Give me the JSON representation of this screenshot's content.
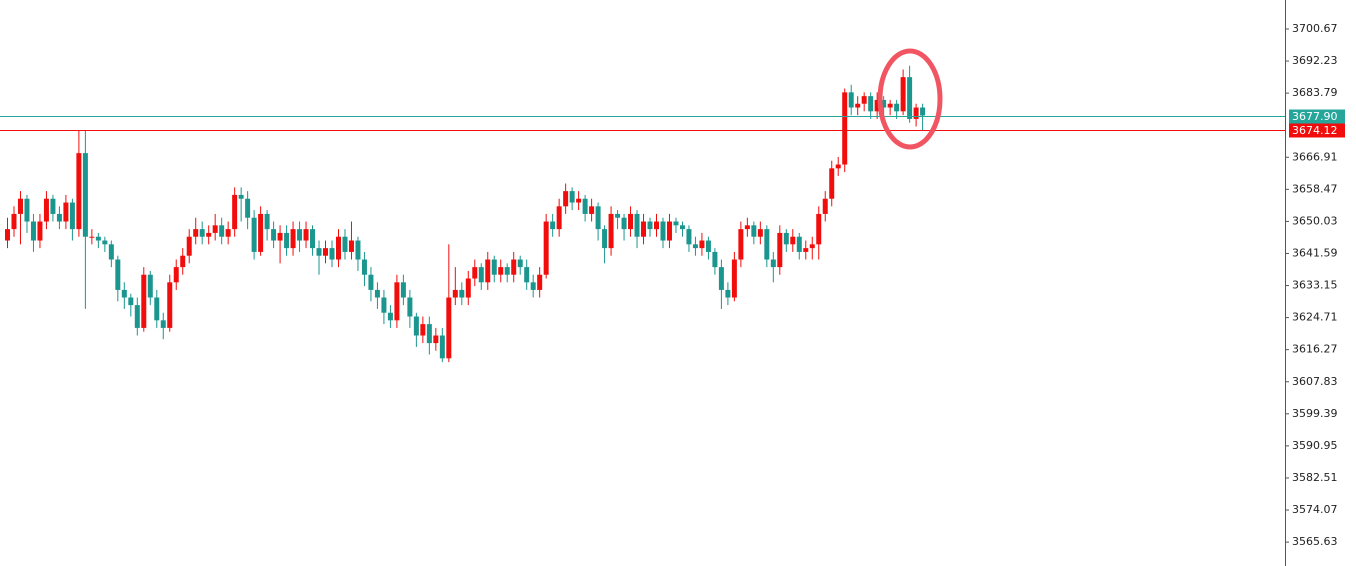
{
  "chart_data": {
    "type": "candlestick",
    "up_color": "#f20d0d",
    "down_color": "#1a968f",
    "ylim": [
      3559.34,
      3708.3
    ],
    "yticks": [
      3700.67,
      3692.23,
      3683.79,
      3666.91,
      3658.47,
      3650.03,
      3641.59,
      3633.15,
      3624.71,
      3616.27,
      {
        "value": 3607.83,
        "label": "3607.83"
      },
      3599.39,
      3590.95,
      3582.51,
      3574.07,
      3565.63
    ],
    "price_lines": [
      {
        "value": 3677.9,
        "label": "3677.90",
        "color": "#26a69a"
      },
      {
        "value": 3674.12,
        "label": "3674.12",
        "color": "#f20d0d"
      }
    ],
    "ohlc": [
      [
        3645,
        3651,
        3643,
        3648
      ],
      [
        3648,
        3654,
        3646,
        3652
      ],
      [
        3652,
        3658,
        3644,
        3656
      ],
      [
        3656,
        3657,
        3647,
        3650
      ],
      [
        3650,
        3652,
        3642,
        3645
      ],
      [
        3645,
        3652,
        3643,
        3650
      ],
      [
        3650,
        3658,
        3648,
        3656
      ],
      [
        3656,
        3657,
        3650,
        3652
      ],
      [
        3652,
        3654,
        3648,
        3650
      ],
      [
        3650,
        3657,
        3648,
        3655
      ],
      [
        3655,
        3656,
        3645,
        3648
      ],
      [
        3648,
        3674,
        3646,
        3668
      ],
      [
        3668,
        3674,
        3627,
        3646
      ],
      [
        3646,
        3648,
        3644,
        3646
      ],
      [
        3646,
        3647,
        3643,
        3645
      ],
      [
        3645,
        3646,
        3642,
        3644
      ],
      [
        3644,
        3645,
        3638,
        3640
      ],
      [
        3640,
        3641,
        3629,
        3632
      ],
      [
        3632,
        3634,
        3627,
        3630
      ],
      [
        3630,
        3631,
        3625,
        3628
      ],
      [
        3628,
        3630,
        3620,
        3622
      ],
      [
        3622,
        3638,
        3621,
        3636
      ],
      [
        3636,
        3637,
        3628,
        3630
      ],
      [
        3630,
        3632,
        3622,
        3624
      ],
      [
        3624,
        3626,
        3619,
        3622
      ],
      [
        3622,
        3636,
        3621,
        3634
      ],
      [
        3634,
        3640,
        3632,
        3638
      ],
      [
        3638,
        3643,
        3636,
        3641
      ],
      [
        3641,
        3648,
        3639,
        3646
      ],
      [
        3646,
        3651,
        3644,
        3648
      ],
      [
        3648,
        3650,
        3644,
        3646
      ],
      [
        3646,
        3649,
        3644,
        3647
      ],
      [
        3647,
        3652,
        3645,
        3649
      ],
      [
        3649,
        3651,
        3644,
        3646
      ],
      [
        3646,
        3650,
        3644,
        3648
      ],
      [
        3648,
        3659,
        3646,
        3657
      ],
      [
        3657,
        3659,
        3650,
        3656
      ],
      [
        3656,
        3658,
        3648,
        3651
      ],
      [
        3651,
        3653,
        3640,
        3642
      ],
      [
        3642,
        3654,
        3641,
        3652
      ],
      [
        3652,
        3653,
        3645,
        3648
      ],
      [
        3648,
        3650,
        3643,
        3645
      ],
      [
        3645,
        3649,
        3639,
        3647
      ],
      [
        3647,
        3649,
        3641,
        3643
      ],
      [
        3643,
        3650,
        3641,
        3648
      ],
      [
        3648,
        3650,
        3642,
        3645
      ],
      [
        3645,
        3650,
        3643,
        3648
      ],
      [
        3648,
        3649,
        3641,
        3643
      ],
      [
        3643,
        3645,
        3636,
        3641
      ],
      [
        3641,
        3645,
        3639,
        3643
      ],
      [
        3643,
        3645,
        3638,
        3640
      ],
      [
        3640,
        3648,
        3638,
        3646
      ],
      [
        3646,
        3648,
        3640,
        3642
      ],
      [
        3642,
        3650,
        3640,
        3645
      ],
      [
        3645,
        3646,
        3637,
        3640
      ],
      [
        3640,
        3642,
        3633,
        3636
      ],
      [
        3636,
        3638,
        3629,
        3632
      ],
      [
        3632,
        3634,
        3627,
        3630
      ],
      [
        3630,
        3632,
        3623,
        3626
      ],
      [
        3626,
        3628,
        3622,
        3624
      ],
      [
        3624,
        3636,
        3622,
        3634
      ],
      [
        3634,
        3636,
        3628,
        3630
      ],
      [
        3630,
        3632,
        3622,
        3625
      ],
      [
        3625,
        3626,
        3617,
        3620
      ],
      [
        3620,
        3625,
        3618,
        3623
      ],
      [
        3623,
        3625,
        3615,
        3618
      ],
      [
        3618,
        3622,
        3616,
        3620
      ],
      [
        3620,
        3622,
        3613,
        3614
      ],
      [
        3614,
        3644,
        3613,
        3630
      ],
      [
        3630,
        3638,
        3628,
        3632
      ],
      [
        3632,
        3634,
        3628,
        3630
      ],
      [
        3630,
        3637,
        3628,
        3635
      ],
      [
        3635,
        3640,
        3633,
        3638
      ],
      [
        3638,
        3639,
        3632,
        3634
      ],
      [
        3634,
        3642,
        3632,
        3640
      ],
      [
        3640,
        3641,
        3634,
        3636
      ],
      [
        3636,
        3640,
        3634,
        3638
      ],
      [
        3638,
        3639,
        3634,
        3636
      ],
      [
        3636,
        3642,
        3634,
        3640
      ],
      [
        3640,
        3641,
        3636,
        3638
      ],
      [
        3638,
        3640,
        3632,
        3634
      ],
      [
        3634,
        3636,
        3630,
        3632
      ],
      [
        3632,
        3638,
        3630,
        3636
      ],
      [
        3636,
        3652,
        3635,
        3650
      ],
      [
        3650,
        3652,
        3646,
        3648
      ],
      [
        3648,
        3656,
        3646,
        3654
      ],
      [
        3654,
        3660,
        3652,
        3658
      ],
      [
        3658,
        3659,
        3653,
        3655
      ],
      [
        3655,
        3658,
        3653,
        3656
      ],
      [
        3656,
        3657,
        3650,
        3652
      ],
      [
        3652,
        3656,
        3650,
        3654
      ],
      [
        3654,
        3655,
        3645,
        3648
      ],
      [
        3648,
        3649,
        3639,
        3643
      ],
      [
        3643,
        3654,
        3641,
        3652
      ],
      [
        3652,
        3653,
        3648,
        3651
      ],
      [
        3651,
        3652,
        3645,
        3648
      ],
      [
        3648,
        3654,
        3646,
        3652
      ],
      [
        3652,
        3653,
        3643,
        3646
      ],
      [
        3646,
        3652,
        3644,
        3650
      ],
      [
        3650,
        3651,
        3646,
        3648
      ],
      [
        3648,
        3652,
        3646,
        3650
      ],
      [
        3650,
        3651,
        3643,
        3645
      ],
      [
        3645,
        3652,
        3643,
        3650
      ],
      [
        3650,
        3651,
        3647,
        3649
      ],
      [
        3649,
        3650,
        3646,
        3648
      ],
      [
        3648,
        3649,
        3642,
        3644
      ],
      [
        3644,
        3646,
        3641,
        3643
      ],
      [
        3643,
        3647,
        3641,
        3645
      ],
      [
        3645,
        3646,
        3640,
        3642
      ],
      [
        3642,
        3643,
        3636,
        3638
      ],
      [
        3638,
        3640,
        3627,
        3632
      ],
      [
        3632,
        3634,
        3628,
        3630
      ],
      [
        3630,
        3642,
        3629,
        3640
      ],
      [
        3640,
        3650,
        3638,
        3648
      ],
      [
        3648,
        3651,
        3646,
        3649
      ],
      [
        3649,
        3650,
        3644,
        3646
      ],
      [
        3646,
        3650,
        3644,
        3648
      ],
      [
        3648,
        3649,
        3638,
        3640
      ],
      [
        3640,
        3642,
        3634,
        3638
      ],
      [
        3638,
        3649,
        3636,
        3647
      ],
      [
        3647,
        3648,
        3642,
        3644
      ],
      [
        3644,
        3648,
        3642,
        3646
      ],
      [
        3646,
        3647,
        3640,
        3642
      ],
      [
        3642,
        3645,
        3640,
        3643
      ],
      [
        3643,
        3646,
        3640,
        3644
      ],
      [
        3644,
        3654,
        3640,
        3652
      ],
      [
        3652,
        3658,
        3650,
        3656
      ],
      [
        3656,
        3666,
        3654,
        3664
      ],
      [
        3664,
        3667,
        3662,
        3665
      ],
      [
        3665,
        3685,
        3663,
        3684
      ],
      [
        3684,
        3686,
        3678,
        3680
      ],
      [
        3680,
        3683,
        3678,
        3681
      ],
      [
        3681,
        3684,
        3679,
        3683
      ],
      [
        3683,
        3684,
        3677,
        3679
      ],
      [
        3679,
        3684,
        3677,
        3682
      ],
      [
        3682,
        3683,
        3678,
        3680
      ],
      [
        3680,
        3682,
        3678,
        3681
      ],
      [
        3681,
        3682,
        3677,
        3679
      ],
      [
        3679,
        3690,
        3678,
        3688
      ],
      [
        3688,
        3691,
        3676,
        3677
      ],
      [
        3677,
        3681,
        3675,
        3680
      ],
      [
        3680,
        3681,
        3674,
        3677.9
      ]
    ]
  }
}
